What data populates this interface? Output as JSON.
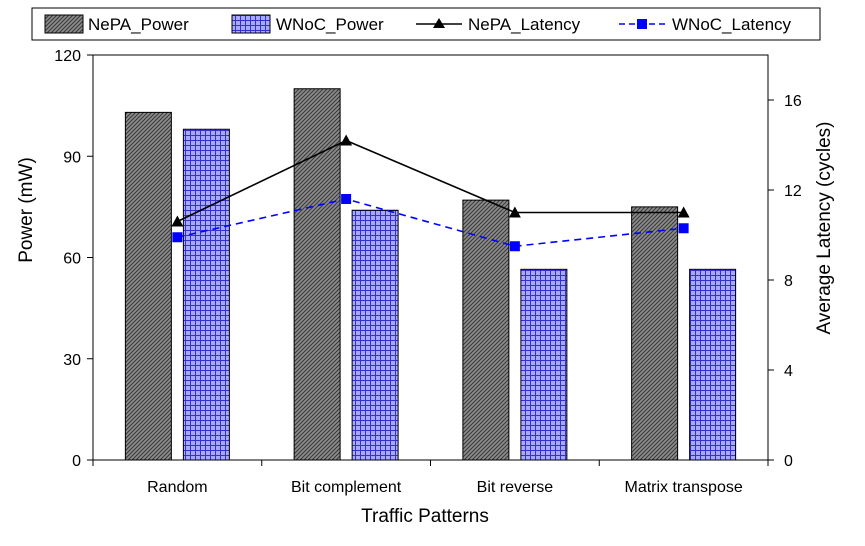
{
  "chart_data": {
    "type": "bar",
    "title": "",
    "xlabel": "Traffic Patterns",
    "ylabel": "Power (mW)",
    "y2label": "Average Latency (cycles)",
    "categories": [
      "Random",
      "Bit complement",
      "Bit reverse",
      "Matrix transpose"
    ],
    "ylim": [
      0,
      120
    ],
    "yticks": [
      0,
      30,
      60,
      90,
      120
    ],
    "y2lim": [
      0,
      18
    ],
    "y2ticks": [
      0,
      4,
      8,
      12,
      16
    ],
    "grid": false,
    "legend_position": "top",
    "bar_series": [
      {
        "name": "NePA_Power",
        "axis": "left",
        "pattern": "dark-hatch",
        "color": "#8c8c8c",
        "values": [
          103,
          110,
          77,
          75
        ]
      },
      {
        "name": "WNoC_Power",
        "axis": "left",
        "pattern": "blue-grid",
        "color": "#9999ff",
        "values": [
          98,
          74,
          56.5,
          56.5
        ]
      }
    ],
    "line_series": [
      {
        "name": "NePA_Latency",
        "axis": "right",
        "color": "#000000",
        "marker": "triangle",
        "dash": "solid",
        "values": [
          10.6,
          14.2,
          11.0,
          11.0
        ]
      },
      {
        "name": "WNoC_Latency",
        "axis": "right",
        "color": "#0000ff",
        "marker": "square",
        "dash": "dashed",
        "values": [
          9.9,
          11.6,
          9.5,
          10.3
        ]
      }
    ]
  }
}
